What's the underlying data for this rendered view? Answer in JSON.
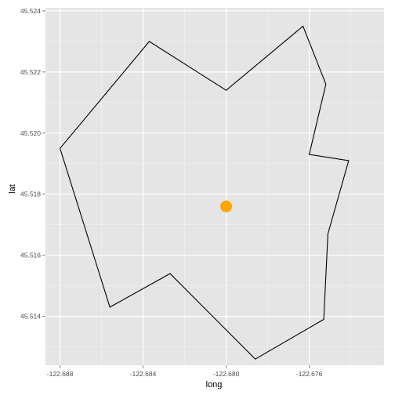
{
  "chart_data": {
    "type": "scatter",
    "title": "",
    "xlabel": "long",
    "ylabel": "lat",
    "xlim": [
      -122.6887,
      -122.6724
    ],
    "ylim": [
      45.5124,
      45.5241
    ],
    "x_ticks": [
      -122.688,
      -122.684,
      -122.68,
      -122.676
    ],
    "x_tick_labels": [
      "-122.688",
      "-122.684",
      "-122.680",
      "-122.676"
    ],
    "y_ticks": [
      45.514,
      45.516,
      45.518,
      45.52,
      45.522,
      45.524
    ],
    "y_tick_labels": [
      "45.514",
      "45.516",
      "45.518",
      "45.520",
      "45.522",
      "45.524"
    ],
    "grid": true,
    "polygon": [
      {
        "long": -122.688,
        "lat": 45.5195
      },
      {
        "long": -122.6837,
        "lat": 45.523
      },
      {
        "long": -122.68,
        "lat": 45.5214
      },
      {
        "long": -122.6763,
        "lat": 45.5235
      },
      {
        "long": -122.6752,
        "lat": 45.5216
      },
      {
        "long": -122.676,
        "lat": 45.5193
      },
      {
        "long": -122.6741,
        "lat": 45.5191
      },
      {
        "long": -122.6751,
        "lat": 45.5167
      },
      {
        "long": -122.6753,
        "lat": 45.5139
      },
      {
        "long": -122.6786,
        "lat": 45.5126
      },
      {
        "long": -122.6827,
        "lat": 45.5154
      },
      {
        "long": -122.6856,
        "lat": 45.5143
      },
      {
        "long": -122.688,
        "lat": 45.5195
      }
    ],
    "points": [
      {
        "long": -122.68,
        "lat": 45.5176
      }
    ],
    "point_color": "#FFA500",
    "panel_color": "#E5E5E5",
    "line_color": "#000000"
  }
}
